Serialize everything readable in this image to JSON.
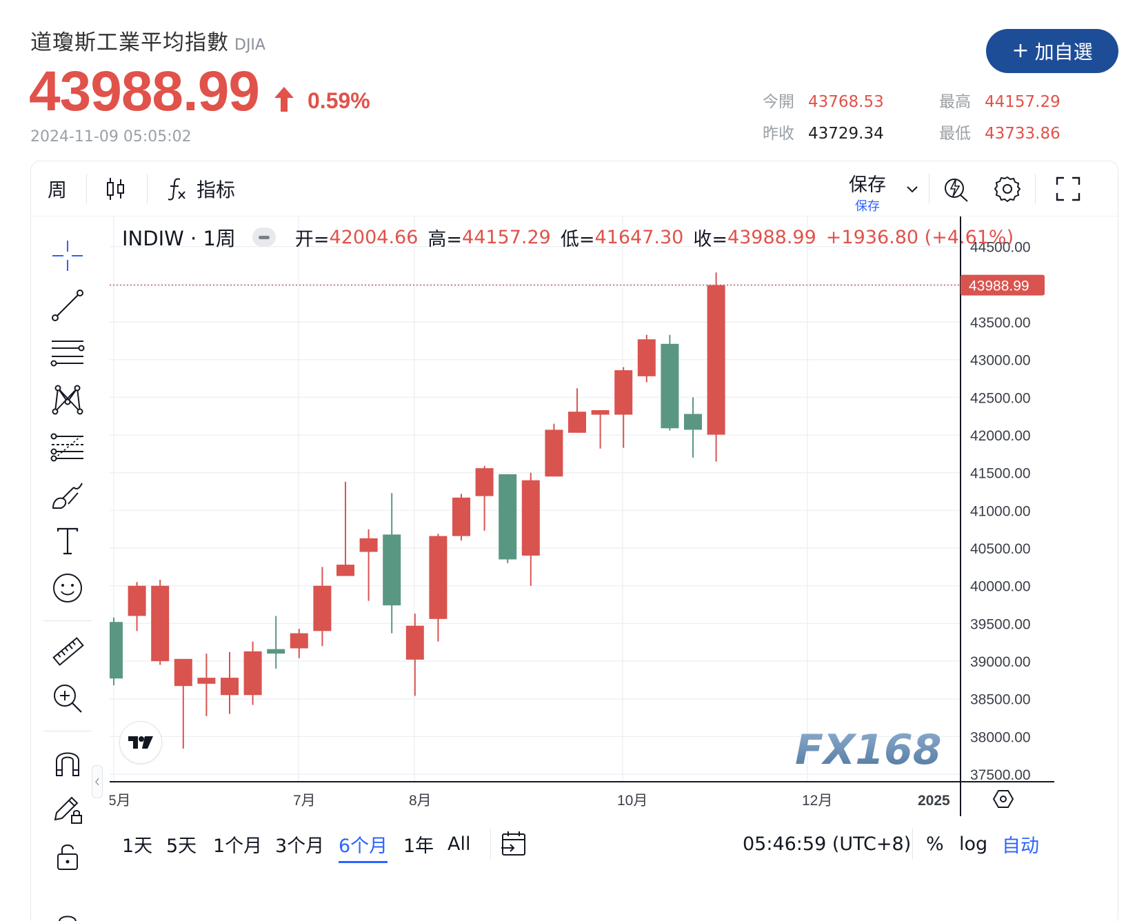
{
  "header": {
    "title": "道瓊斯工業平均指數",
    "symbol": "DJIA",
    "price": "43988.99",
    "change_pct": "0.59%",
    "datetime": "2024-11-09 05:05:02",
    "add_watchlist_label": "加自選",
    "stats": {
      "open_label": "今開",
      "open": "43768.53",
      "high_label": "最高",
      "high": "44157.29",
      "prev_close_label": "昨收",
      "prev_close": "43729.34",
      "low_label": "最低",
      "low": "43733.86"
    }
  },
  "toolbar": {
    "interval": "周",
    "indicators_label": "指标",
    "save_label": "保存",
    "save_sub_label": "保存"
  },
  "legend": {
    "symbol_interval": "INDIW · 1周",
    "open_label": "开=",
    "open": "42004.66",
    "high_label": "高=",
    "high": "44157.29",
    "low_label": "低=",
    "low": "41647.30",
    "close_label": "收=",
    "close": "43988.99",
    "change": "+1936.80 (+4.61%)"
  },
  "bottom_bar": {
    "ranges": [
      "1天",
      "5天",
      "1个月",
      "3个月",
      "6个月",
      "1年",
      "All"
    ],
    "active_range": "6个月",
    "clock": "05:46:59 (UTC+8)",
    "percent_label": "%",
    "log_label": "log",
    "auto_label": "自动"
  },
  "watermark": "FX168",
  "colors": {
    "up": "#d9534f",
    "down": "#5a9782",
    "accent": "#2962ff",
    "brand_button": "#1e4d98",
    "price_red": "#e0524a"
  },
  "chart_data": {
    "type": "candlestick",
    "x_labels": [
      "5月",
      "7月",
      "8月",
      "10月",
      "12月",
      "2025"
    ],
    "y_ticks": [
      44500,
      44000,
      43500,
      43000,
      42500,
      42000,
      41500,
      41000,
      40500,
      40000,
      39500,
      39000,
      38500,
      38000,
      37500
    ],
    "last_price_label": "43988.99",
    "ylim": [
      37400,
      44900
    ],
    "candles": [
      {
        "o": 39520,
        "h": 39580,
        "l": 38680,
        "c": 38770
      },
      {
        "o": 39600,
        "h": 40050,
        "l": 39400,
        "c": 40000
      },
      {
        "o": 39000,
        "h": 40080,
        "l": 38950,
        "c": 40000
      },
      {
        "o": 38670,
        "h": 39020,
        "l": 37840,
        "c": 39030
      },
      {
        "o": 38700,
        "h": 39100,
        "l": 38270,
        "c": 38780
      },
      {
        "o": 38550,
        "h": 39120,
        "l": 38300,
        "c": 38780
      },
      {
        "o": 38550,
        "h": 39260,
        "l": 38420,
        "c": 39130
      },
      {
        "o": 39160,
        "h": 39600,
        "l": 38900,
        "c": 39100
      },
      {
        "o": 39170,
        "h": 39430,
        "l": 39040,
        "c": 39370
      },
      {
        "o": 39400,
        "h": 40250,
        "l": 39200,
        "c": 40000
      },
      {
        "o": 40130,
        "h": 41380,
        "l": 40130,
        "c": 40280
      },
      {
        "o": 40450,
        "h": 40750,
        "l": 39800,
        "c": 40630
      },
      {
        "o": 40680,
        "h": 41230,
        "l": 39370,
        "c": 39740
      },
      {
        "o": 39020,
        "h": 39630,
        "l": 38540,
        "c": 39470
      },
      {
        "o": 39560,
        "h": 40690,
        "l": 39260,
        "c": 40660
      },
      {
        "o": 40660,
        "h": 41220,
        "l": 40600,
        "c": 41170
      },
      {
        "o": 41190,
        "h": 41590,
        "l": 40730,
        "c": 41560
      },
      {
        "o": 41480,
        "h": 41480,
        "l": 40300,
        "c": 40350
      },
      {
        "o": 40400,
        "h": 41500,
        "l": 40000,
        "c": 41400
      },
      {
        "o": 41450,
        "h": 42150,
        "l": 41450,
        "c": 42070
      },
      {
        "o": 42030,
        "h": 42620,
        "l": 42050,
        "c": 42310
      },
      {
        "o": 42270,
        "h": 42320,
        "l": 41820,
        "c": 42330
      },
      {
        "o": 42270,
        "h": 42900,
        "l": 41830,
        "c": 42860
      },
      {
        "o": 42780,
        "h": 43330,
        "l": 42700,
        "c": 43270
      },
      {
        "o": 43210,
        "h": 43330,
        "l": 42060,
        "c": 42090
      },
      {
        "o": 42280,
        "h": 42500,
        "l": 41700,
        "c": 42070
      },
      {
        "o": 42004.66,
        "h": 44157.29,
        "l": 41647.3,
        "c": 43988.99
      }
    ]
  }
}
